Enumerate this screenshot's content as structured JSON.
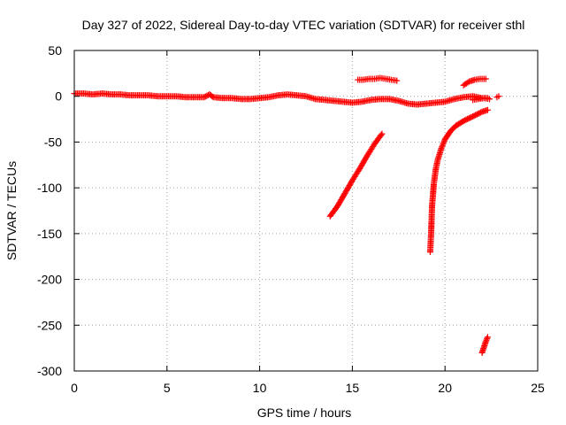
{
  "chart_data": {
    "type": "scatter",
    "title": "Day 327 of 2022, Sidereal Day-to-day VTEC variation (SDTVAR) for receiver sthl",
    "xlabel": "GPS time / hours",
    "ylabel": "SDTVAR / TECUs",
    "xlim": [
      0,
      25
    ],
    "ylim": [
      -300,
      50
    ],
    "xticks": [
      0,
      5,
      10,
      15,
      20,
      25
    ],
    "xtick_labels": [
      "0",
      "5",
      "10",
      "15",
      "20",
      "25"
    ],
    "yticks": [
      -300,
      -250,
      -200,
      -150,
      -100,
      -50,
      0,
      50
    ],
    "ytick_labels": [
      "-300",
      "-250",
      "-200",
      "-150",
      "-100",
      "-50",
      "0",
      "50"
    ],
    "grid": true,
    "legend": "none",
    "marker": "plus",
    "color": "#ff0000",
    "series": [
      {
        "x": [
          0.0,
          0.5,
          1.0,
          1.5,
          2.0,
          2.5,
          3.0,
          3.5,
          4.0,
          4.5,
          5.0,
          5.5,
          6.0,
          6.5,
          7.0,
          7.3,
          7.5,
          8.0,
          8.5,
          9.0,
          9.5,
          10.0,
          10.5,
          11.0,
          11.5,
          12.0,
          12.5,
          13.0,
          13.5,
          14.0,
          14.5,
          15.0,
          15.5,
          16.0,
          16.5,
          17.0,
          17.5,
          18.0,
          18.5,
          19.0,
          19.5,
          20.0,
          20.5,
          21.0,
          21.5,
          22.0,
          22.3
        ],
        "y": [
          3,
          3,
          2,
          3,
          2,
          2,
          1,
          1,
          1,
          0,
          0,
          0,
          -1,
          -1,
          -1,
          2,
          -1,
          -2,
          -2,
          -3,
          -3,
          -2,
          -1,
          1,
          2,
          1,
          0,
          -3,
          -4,
          -5,
          -6,
          -7,
          -6,
          -4,
          -3,
          -3,
          -5,
          -8,
          -9,
          -8,
          -7,
          -6,
          -3,
          -1,
          0,
          -2,
          -2
        ]
      },
      {
        "x": [
          15.3,
          15.6,
          15.9,
          16.2,
          16.5,
          16.8,
          17.1,
          17.4
        ],
        "y": [
          18,
          18,
          19,
          19,
          20,
          19,
          18,
          17
        ]
      },
      {
        "x": [
          13.8,
          14.2,
          14.6,
          15.0,
          15.4,
          15.8,
          16.2,
          16.6
        ],
        "y": [
          -131,
          -120,
          -106,
          -92,
          -79,
          -65,
          -52,
          -41
        ]
      },
      {
        "x": [
          19.2,
          19.25,
          19.3,
          19.4,
          19.5,
          19.6,
          19.8,
          20.0,
          20.3,
          20.6,
          21.0,
          21.5,
          22.0,
          22.3
        ],
        "y": [
          -170,
          -150,
          -120,
          -95,
          -80,
          -70,
          -57,
          -47,
          -38,
          -32,
          -27,
          -22,
          -17,
          -15
        ]
      },
      {
        "x": [
          21.0,
          21.3,
          21.6,
          21.9,
          22.2
        ],
        "y": [
          12,
          16,
          18,
          19,
          19
        ]
      },
      {
        "x": [
          21.5,
          21.8,
          22.1,
          22.4
        ],
        "y": [
          -4,
          -3,
          -2,
          -3
        ]
      },
      {
        "x": [
          22.8,
          22.9
        ],
        "y": [
          -1,
          0
        ]
      },
      {
        "x": [
          22.0,
          22.1,
          22.2,
          22.3
        ],
        "y": [
          -280,
          -274,
          -268,
          -263
        ]
      }
    ]
  }
}
